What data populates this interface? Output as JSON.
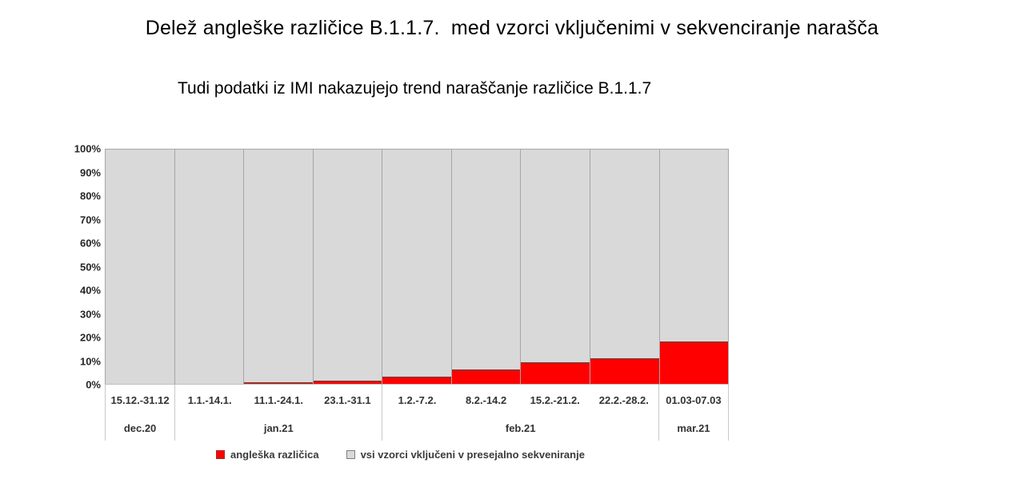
{
  "slide": {
    "title": "Delež angleške različice B.1.1.7.  med vzorci vključenimi v sekvenciranje narašča",
    "subtitle": "Tudi podatki iz IMI nakazujejo trend naraščanje različice B.1.1.7"
  },
  "colors": {
    "variant_red": "#ff0000",
    "variant_red_edge": "#9e2b25",
    "samples_gray": "#d9d9d9",
    "bar_border": "#a6a6a6",
    "axis_divider": "#c9c9c9",
    "text_dark": "#333333"
  },
  "chart_data": {
    "type": "bar",
    "stacked": true,
    "title": "Delež angleške različice B.1.1.7. med vzorci vključenimi v sekvenciranje narašča",
    "subtitle": "Tudi podatki iz IMI nakazujejo trend naraščanje različice B.1.1.7",
    "xlabel": "",
    "ylabel": "",
    "ylim": [
      0,
      100
    ],
    "y_ticks": [
      "100%",
      "90%",
      "80%",
      "70%",
      "60%",
      "50%",
      "40%",
      "30%",
      "20%",
      "10%",
      "0%"
    ],
    "grid": false,
    "legend_position": "bottom",
    "categories": [
      "15.12.-31.12",
      "1.1.-14.1.",
      "11.1.-24.1.",
      "23.1.-31.1",
      "1.2.-7.2.",
      "8.2.-14.2",
      "15.2.-21.2.",
      "22.2.-28.2.",
      "01.03-07.03"
    ],
    "month_groups": [
      {
        "label": "dec.20",
        "span": 1
      },
      {
        "label": "jan.21",
        "span": 3
      },
      {
        "label": "feb.21",
        "span": 4
      },
      {
        "label": "mar.21",
        "span": 1
      }
    ],
    "series": [
      {
        "name": "angleška različica",
        "color": "#ff0000",
        "values": [
          0,
          0,
          0.7,
          1.2,
          3,
          6,
          9,
          11,
          18
        ]
      },
      {
        "name": "vsi vzorci vključeni v presejalno sekveniranje",
        "color": "#d9d9d9",
        "values": [
          100,
          100,
          99.3,
          98.8,
          97,
          94,
          91,
          89,
          82
        ]
      }
    ]
  },
  "legend": {
    "items": [
      {
        "label": "angleška različica",
        "color": "#ff0000",
        "border": "#9e2b25"
      },
      {
        "label": "vsi vzorci vključeni v presejalno sekveniranje",
        "color": "#d9d9d9",
        "border": "#7f7f7f"
      }
    ]
  }
}
